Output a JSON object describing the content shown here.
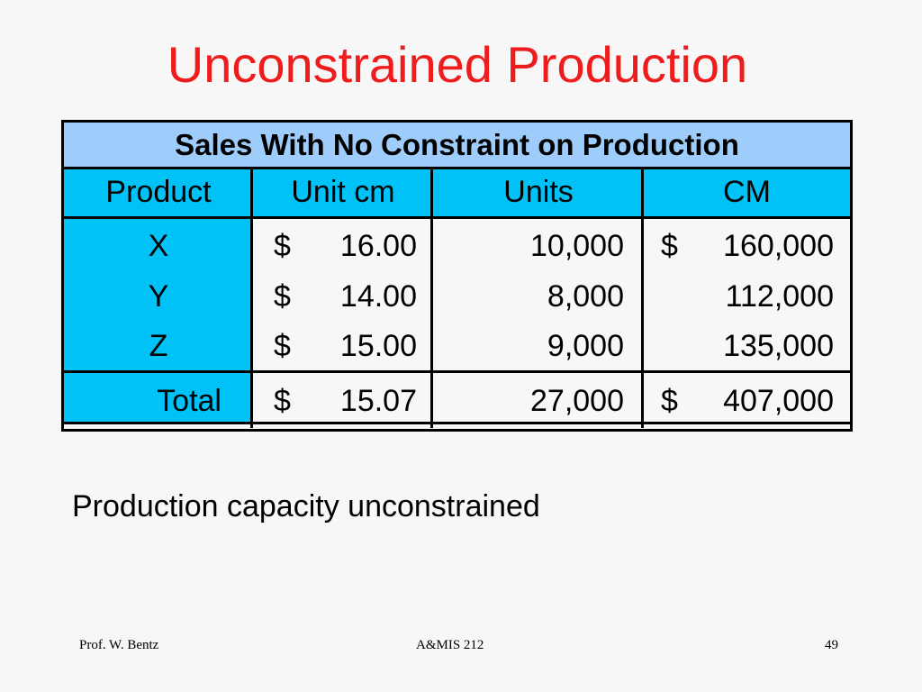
{
  "slide": {
    "title": "Unconstrained Production",
    "body": "Production capacity unconstrained"
  },
  "table": {
    "title": "Sales With No Constraint on Production",
    "headers": [
      "Product",
      "Unit cm",
      "Units",
      "CM"
    ],
    "rows": [
      {
        "product": "X",
        "unit_cm_sym": "$",
        "unit_cm": "16.00",
        "units": "10,000",
        "cm_sym": "$",
        "cm": "160,000"
      },
      {
        "product": "Y",
        "unit_cm_sym": "$",
        "unit_cm": "14.00",
        "units": "8,000",
        "cm_sym": "",
        "cm": "112,000"
      },
      {
        "product": "Z",
        "unit_cm_sym": "$",
        "unit_cm": "15.00",
        "units": "9,000",
        "cm_sym": "",
        "cm": "135,000"
      }
    ],
    "total": {
      "label": "Total",
      "unit_cm_sym": "$",
      "unit_cm": "15.07",
      "units": "27,000",
      "cm_sym": "$",
      "cm": "407,000"
    }
  },
  "footer": {
    "author": "Prof. W. Bentz",
    "course": "A&MIS 212",
    "page": "49"
  },
  "colors": {
    "title": "#ee1c1c",
    "table_title_bg": "#9fcdfb",
    "header_bg": "#00c2f7",
    "background": "#f7f7f7"
  }
}
